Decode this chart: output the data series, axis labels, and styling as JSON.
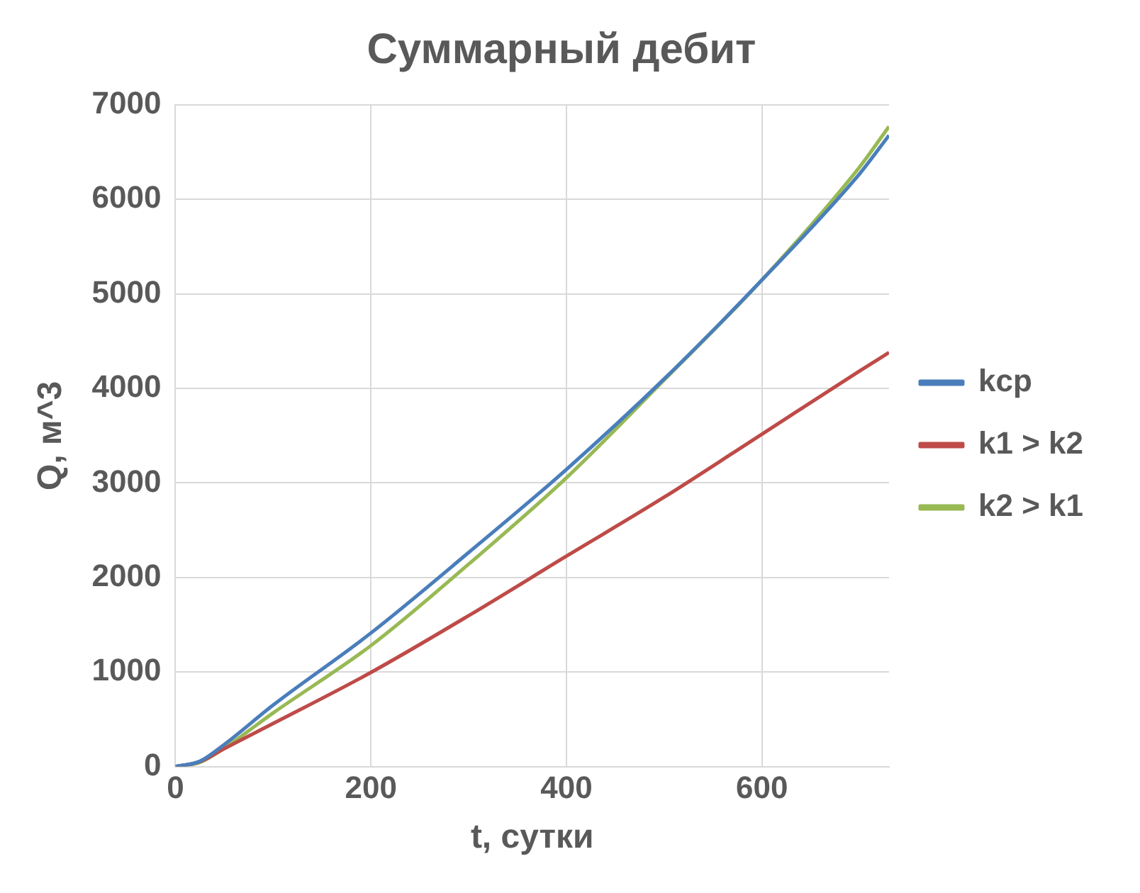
{
  "chart_data": {
    "type": "line",
    "title": "Суммарный дебит",
    "xlabel": "t, сутки",
    "ylabel": "Q, м^3",
    "x": [
      0,
      25,
      50,
      100,
      200,
      300,
      400,
      500,
      600,
      700,
      730
    ],
    "series": [
      {
        "name": "kcp",
        "color": "#4a7ebb",
        "values": [
          0,
          56,
          234,
          651,
          1413,
          2265,
          3144,
          4101,
          5148,
          6272,
          6678
        ]
      },
      {
        "name": "k1 > k2",
        "color": "#be4b48",
        "values": [
          0,
          50,
          190,
          456,
          996,
          1597,
          2226,
          2850,
          3517,
          4185,
          4380
        ]
      },
      {
        "name": "k2 > k1",
        "color": "#98b954",
        "values": [
          0,
          45,
          195,
          568,
          1280,
          2142,
          3055,
          4090,
          5148,
          6344,
          6772
        ]
      }
    ],
    "xlim": [
      0,
      730
    ],
    "xticks": [
      0,
      200,
      400,
      600
    ],
    "ylim": [
      0,
      7000
    ],
    "yticks": [
      0,
      1000,
      2000,
      3000,
      4000,
      5000,
      6000,
      7000
    ],
    "grid": true,
    "legend": "right",
    "marker": "none",
    "line_style": "solid"
  }
}
